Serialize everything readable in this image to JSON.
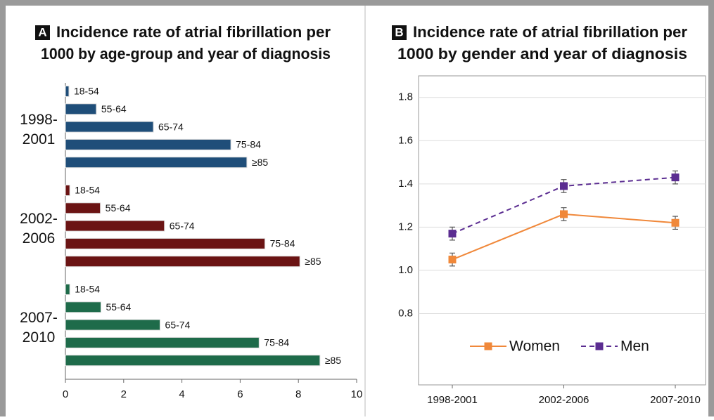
{
  "chart_data": [
    {
      "type": "bar",
      "orientation": "horizontal",
      "panel": "A",
      "title": [
        "Incidence rate of atrial fibrillation per",
        "1000 by age-group and year of diagnosis"
      ],
      "categories": [
        "18-54",
        "55-64",
        "65-74",
        "75-84",
        "≥85"
      ],
      "series": [
        {
          "name": "1998-\n2001",
          "color": "#1f4e79",
          "values": [
            0.12,
            1.06,
            3.02,
            5.68,
            6.23
          ]
        },
        {
          "name": "2002-\n2006",
          "color": "#6b1414",
          "values": [
            0.15,
            1.2,
            3.4,
            6.85,
            8.05
          ]
        },
        {
          "name": "2007-\n2010",
          "color": "#1e6b4a",
          "values": [
            0.15,
            1.22,
            3.25,
            6.65,
            8.74
          ]
        }
      ],
      "xlim": [
        0,
        10
      ],
      "xticks": [
        0,
        2,
        4,
        6,
        8,
        10
      ]
    },
    {
      "type": "line",
      "panel": "B",
      "title": [
        "Incidence rate of atrial fibrillation per",
        "1000 by gender and year of diagnosis"
      ],
      "categories": [
        "1998-2001",
        "2002-2006",
        "2007-2010"
      ],
      "series": [
        {
          "name": "Women",
          "color": "#f0883a",
          "dashed": false,
          "values": [
            1.05,
            1.26,
            1.22
          ],
          "errors": [
            0.03,
            0.03,
            0.03
          ]
        },
        {
          "name": "Men",
          "color": "#5b2d91",
          "dashed": true,
          "values": [
            1.17,
            1.39,
            1.43
          ],
          "errors": [
            0.03,
            0.03,
            0.03
          ]
        }
      ],
      "ylim": [
        0.47,
        1.9
      ],
      "yticks": [
        0.8,
        {
          "value": 1.0,
          "label": "1.0"
        },
        1.2,
        1.4,
        1.6,
        1.8
      ],
      "grid": true,
      "legend": "lower center"
    }
  ]
}
